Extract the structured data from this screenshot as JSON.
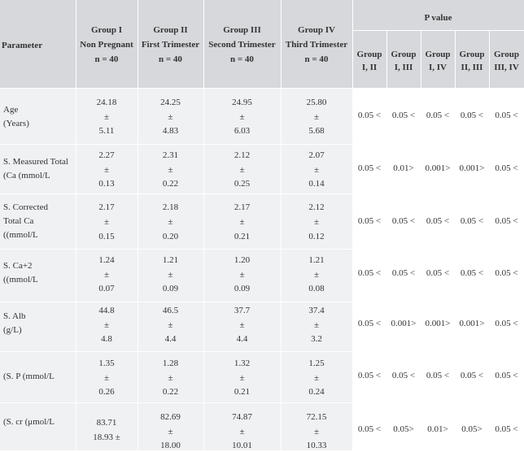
{
  "header": {
    "parameter": "Parameter",
    "groups": [
      {
        "l1": "Group I",
        "l2": "Non Pregnant",
        "l3": "n = 40"
      },
      {
        "l1": "Group II",
        "l2": "First Trimester",
        "l3": "n = 40"
      },
      {
        "l1": "Group III",
        "l2": "Second Trimester",
        "l3": "n = 40"
      },
      {
        "l1": "Group IV",
        "l2": "Third Trimester",
        "l3": "n = 40"
      }
    ],
    "pvalue": "P value",
    "comparisons": [
      {
        "l1": "Group",
        "l2": "I, II"
      },
      {
        "l1": "Group",
        "l2": "I, III"
      },
      {
        "l1": "Group",
        "l2": "I, IV"
      },
      {
        "l1": "Group",
        "l2": "II, III"
      },
      {
        "l1": "Group",
        "l2": "III, IV"
      }
    ]
  },
  "rows": [
    {
      "param": [
        "Age",
        "(Years)"
      ],
      "g": [
        [
          "24.18",
          "±",
          "5.11"
        ],
        [
          "24.25",
          "±",
          "4.83"
        ],
        [
          "24.95",
          "±",
          "6.03"
        ],
        [
          "25.80",
          "±",
          "5.68"
        ]
      ],
      "p": [
        "0.05 <",
        "0.05 <",
        "0.05 <",
        "0.05 <",
        "0.05 <"
      ]
    },
    {
      "param": [
        "S. Measured Total",
        "(Ca (mmol/L"
      ],
      "g": [
        [
          "2.27",
          "±",
          "0.13"
        ],
        [
          "2.31",
          "±",
          "0.22"
        ],
        [
          "2.12",
          "±",
          "0.25"
        ],
        [
          "2.07",
          "±",
          "0.14"
        ]
      ],
      "p": [
        "0.05 <",
        "0.01>",
        "0.001>",
        "0.001>",
        "0.05 <"
      ]
    },
    {
      "param": [
        "S. Corrected",
        "Total Ca",
        "((mmol/L"
      ],
      "g": [
        [
          "2.17",
          "±",
          "0.15"
        ],
        [
          "2.18",
          "±",
          "0.20"
        ],
        [
          "2.17",
          "±",
          "0.21"
        ],
        [
          "2.12",
          "±",
          "0.12"
        ]
      ],
      "p": [
        "0.05 <",
        "0.05 <",
        "0.05 <",
        "0.05 <",
        "0.05 <"
      ]
    },
    {
      "param": [
        "S. Ca+2",
        "((mmol/L"
      ],
      "g": [
        [
          "1.24",
          "±",
          "0.07"
        ],
        [
          "1.21",
          "±",
          "0.09"
        ],
        [
          "1.20",
          "±",
          "0.09"
        ],
        [
          "1.21",
          "±",
          "0.08"
        ]
      ],
      "p": [
        "0.05 <",
        "0.05 <",
        "0.05 <",
        "0.05 <",
        "0.05 <"
      ]
    },
    {
      "param": [
        "S. Alb",
        "(g/L)"
      ],
      "g": [
        [
          "44.8",
          "±",
          "4.8"
        ],
        [
          "46.5",
          "±",
          "4.4"
        ],
        [
          "37.7",
          "±",
          "4.4"
        ],
        [
          "37.4",
          "±",
          "3.2"
        ]
      ],
      "p": [
        "0.05 <",
        "0.001>",
        "0.001>",
        "0.001>",
        "0.05 <"
      ]
    },
    {
      "param": [
        "(S. P (mmol/L"
      ],
      "g": [
        [
          "1.35",
          "±",
          "0.26"
        ],
        [
          "1.28",
          "±",
          "0.22"
        ],
        [
          "1.32",
          "±",
          "0.21"
        ],
        [
          "1.25",
          "±",
          "0.24"
        ]
      ],
      "p": [
        "0.05 <",
        "0.05 <",
        "0.05 <",
        "0.05 <",
        "0.05 <"
      ]
    },
    {
      "param": [
        "(S. cr (μmol/L"
      ],
      "g": [
        [
          "83.71",
          "18.93 ±",
          ""
        ],
        [
          "82.69",
          "±",
          "18.00"
        ],
        [
          "74.87",
          "±",
          "10.01"
        ],
        [
          "72.15",
          "±",
          "10.33"
        ]
      ],
      "p": [
        "0.05 <",
        "0.05>",
        "0.01>",
        "0.05>",
        "0.05 <"
      ]
    }
  ]
}
